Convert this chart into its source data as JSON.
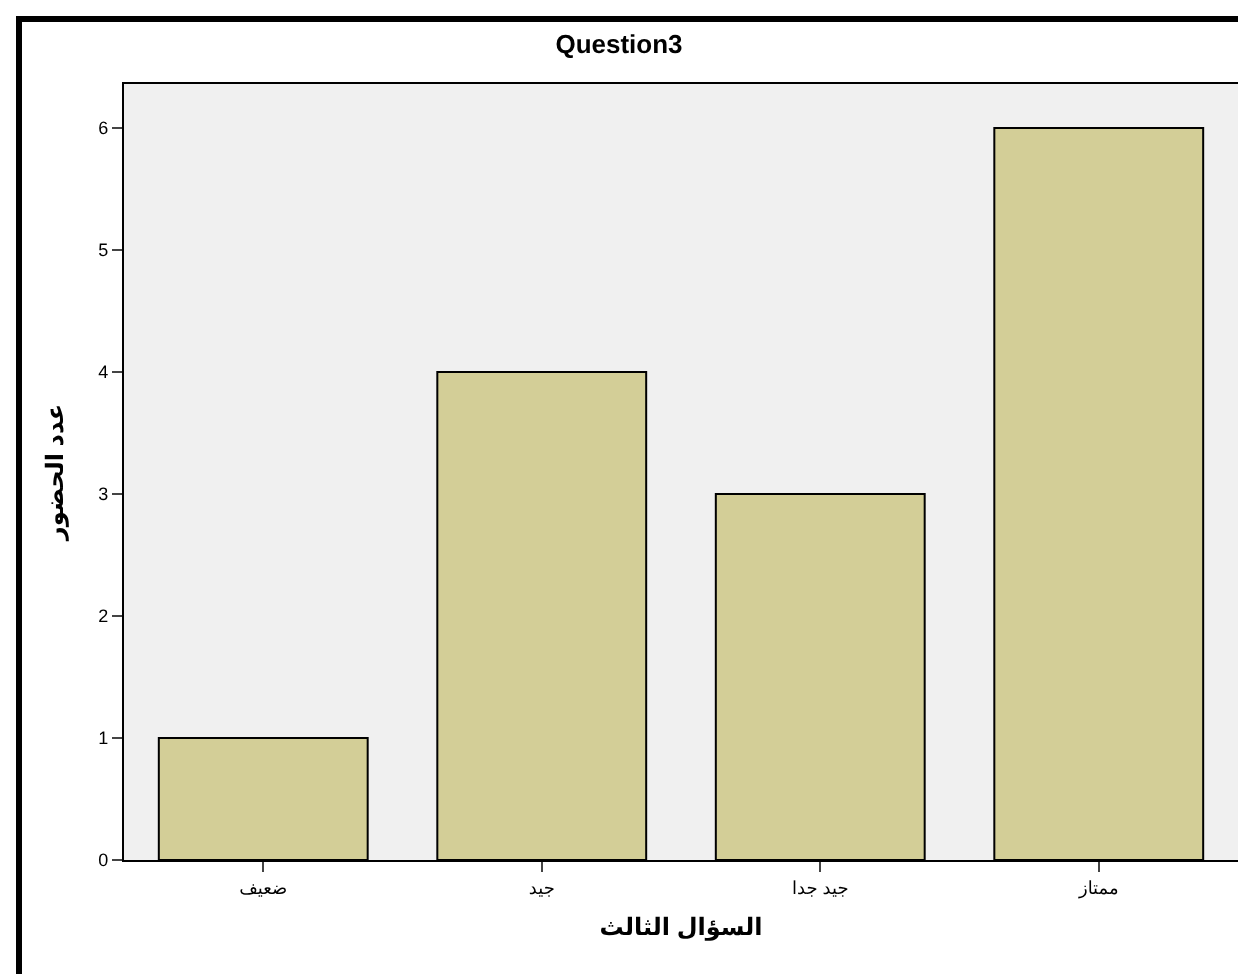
{
  "chart_data": {
    "type": "bar",
    "title": "Question3",
    "xlabel": "السؤال الثالث",
    "ylabel": "عدد الحضور",
    "categories": [
      "ضعيف",
      "جيد",
      "جيد جدا",
      "ممتاز"
    ],
    "values": [
      1,
      4,
      3,
      6
    ],
    "color": "#d3ce97",
    "ylim": [
      0,
      6.36
    ],
    "yticks": [
      0,
      1,
      2,
      3,
      4,
      5,
      6
    ]
  }
}
